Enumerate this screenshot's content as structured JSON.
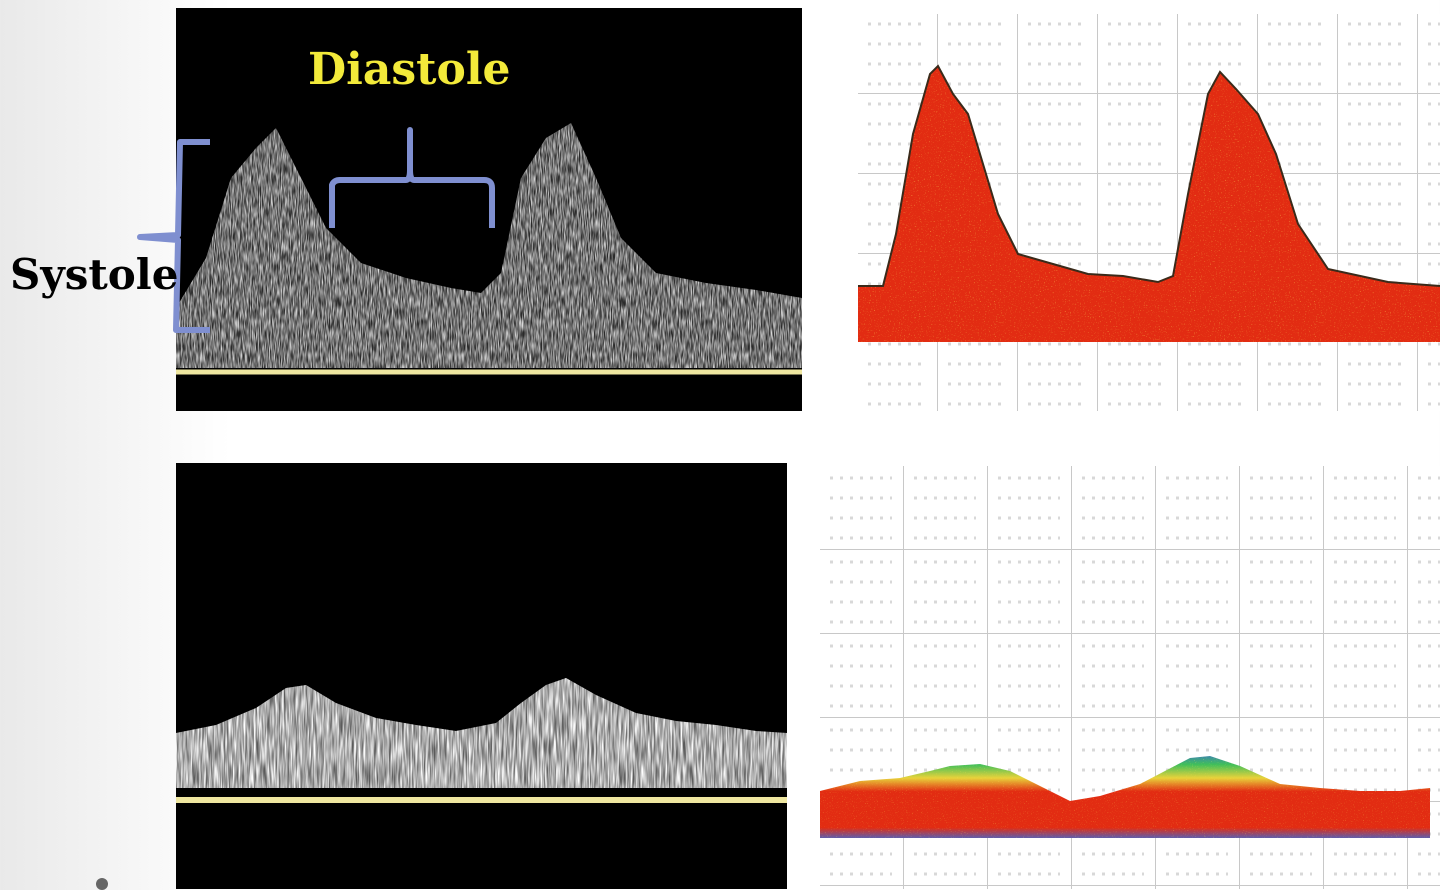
{
  "labels": {
    "diastole": "Diastole",
    "systole": "Systole"
  },
  "panels": {
    "top_left": "doppler-grayscale-high-resistance",
    "top_right": "doppler-color-high-resistance",
    "bottom_left": "doppler-grayscale-low-resistance",
    "bottom_right": "doppler-color-low-resistance"
  },
  "colors": {
    "label_diastole": "#f3ea3a",
    "label_systole": "#000000",
    "bracket": "#7f8fd0",
    "baseline": "#efe7a0",
    "spectrum_fill": "#e22c12",
    "grid_line": "#c8c8c8"
  }
}
